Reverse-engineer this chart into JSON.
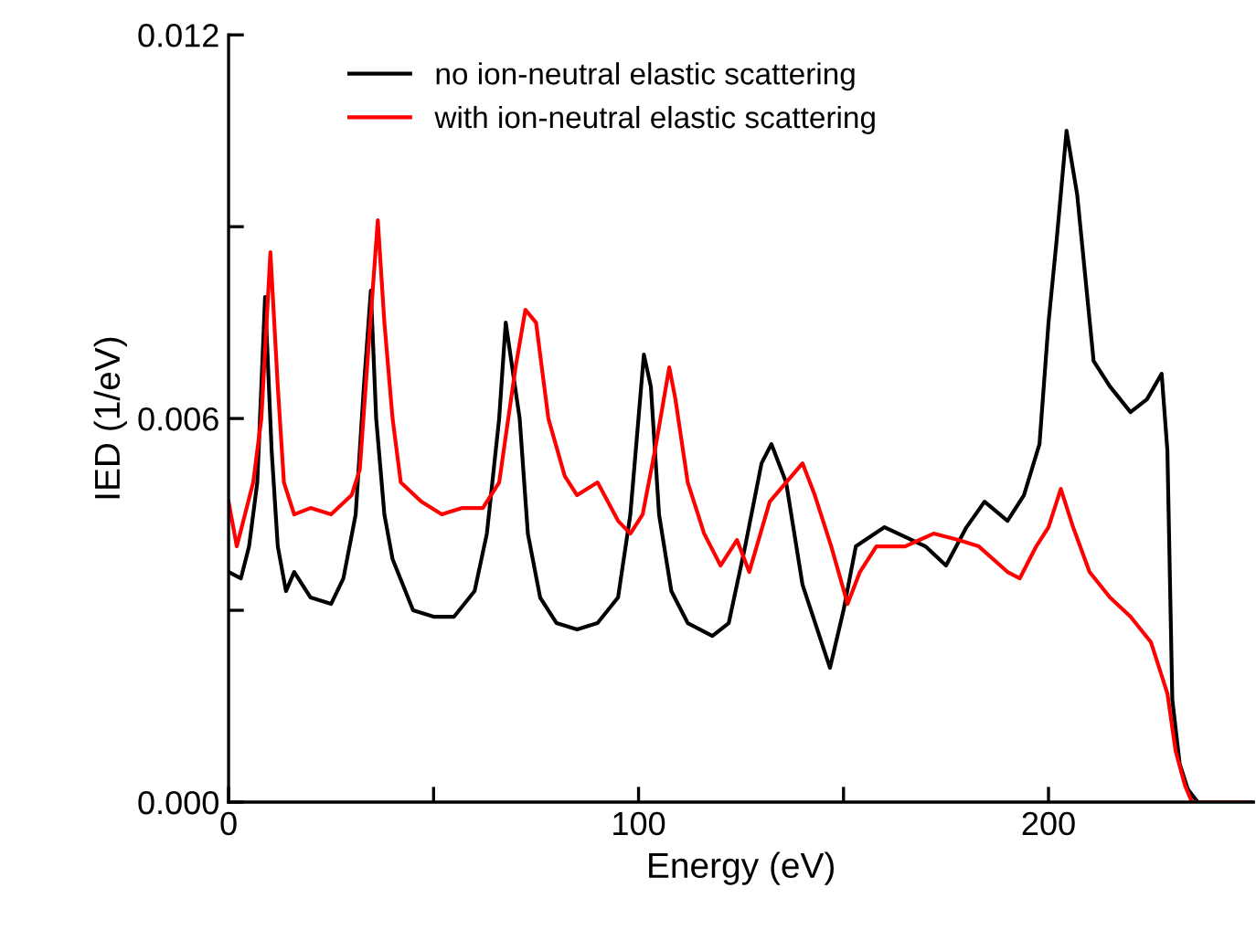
{
  "chart_data": {
    "type": "line",
    "xlabel": "Energy (eV)",
    "ylabel": "IED (1/eV)",
    "xlim": [
      0,
      250
    ],
    "xticks": [
      0,
      {
        "value": 50,
        "label": null
      },
      100,
      {
        "value": 150,
        "label": null
      },
      200
    ],
    "ylim": [
      0,
      0.012
    ],
    "yticks": [
      {
        "value": 0,
        "label": "0.000"
      },
      {
        "value": 0.003,
        "label": null
      },
      {
        "value": 0.006,
        "label": "0.006"
      },
      {
        "value": 0.009,
        "label": null
      },
      {
        "value": 0.012,
        "label": "0.012"
      }
    ],
    "grid": false,
    "legend": "top",
    "marker": "none",
    "line_style": "solid",
    "series": [
      {
        "name": "no ion-neutral elastic scattering",
        "color": "#000000",
        "x": [
          0,
          3,
          5,
          7,
          8.9,
          10.5,
          12,
          14,
          16,
          20,
          25,
          28,
          31,
          33,
          34.7,
          36,
          38,
          40,
          45,
          50,
          55,
          60,
          63,
          66,
          67.6,
          71,
          73,
          76,
          80,
          85,
          90,
          95,
          98,
          101.3,
          103,
          105,
          108,
          112,
          118,
          122,
          126,
          130,
          132.4,
          136,
          140,
          146.7,
          150,
          153,
          160,
          170,
          175,
          180,
          184.4,
          190,
          194,
          197.8,
          200,
          202,
          204.4,
          207,
          211,
          215,
          220,
          224,
          227.6,
          229,
          230.2,
          232,
          234,
          236.4,
          250
        ],
        "values": [
          0.0036,
          0.0035,
          0.004,
          0.005,
          0.0079,
          0.0055,
          0.004,
          0.0033,
          0.0036,
          0.0032,
          0.0031,
          0.0035,
          0.0045,
          0.0065,
          0.008,
          0.006,
          0.0045,
          0.0038,
          0.003,
          0.0029,
          0.0029,
          0.0033,
          0.0042,
          0.006,
          0.0075,
          0.006,
          0.0042,
          0.0032,
          0.0028,
          0.0027,
          0.0028,
          0.0032,
          0.0045,
          0.007,
          0.0065,
          0.0045,
          0.0033,
          0.0028,
          0.0026,
          0.0028,
          0.004,
          0.0053,
          0.0056,
          0.005,
          0.0034,
          0.0021,
          0.003,
          0.004,
          0.0043,
          0.004,
          0.0037,
          0.0043,
          0.0047,
          0.0044,
          0.0048,
          0.0056,
          0.0075,
          0.0088,
          0.0105,
          0.0095,
          0.0069,
          0.0065,
          0.0061,
          0.0063,
          0.0067,
          0.0055,
          0.0016,
          0.0006,
          0.0002,
          0,
          0
        ]
      },
      {
        "name": "with ion-neutral elastic scattering",
        "color": "#ff0000",
        "x": [
          0,
          2,
          4,
          6,
          8,
          10.2,
          12,
          13.5,
          16,
          20,
          25,
          30,
          32,
          34,
          36.4,
          38,
          40,
          42,
          47,
          52,
          57,
          62,
          66,
          70,
          72.4,
          75,
          78,
          82,
          85,
          90,
          95,
          98,
          101,
          104,
          107.5,
          109,
          112,
          116,
          120,
          124,
          127,
          132,
          136,
          140,
          143,
          147,
          151,
          154,
          158,
          165,
          172,
          178,
          183,
          190,
          193,
          197,
          200,
          203,
          206,
          210,
          215,
          220,
          225,
          229,
          231,
          233.3,
          235,
          250
        ],
        "values": [
          0.0047,
          0.004,
          0.0045,
          0.005,
          0.006,
          0.0086,
          0.0065,
          0.005,
          0.0045,
          0.0046,
          0.0045,
          0.0048,
          0.0052,
          0.007,
          0.0091,
          0.0075,
          0.006,
          0.005,
          0.0047,
          0.0045,
          0.0046,
          0.0046,
          0.005,
          0.0068,
          0.0077,
          0.0075,
          0.006,
          0.0051,
          0.0048,
          0.005,
          0.0044,
          0.0042,
          0.0045,
          0.0055,
          0.0068,
          0.0063,
          0.005,
          0.0042,
          0.0037,
          0.0041,
          0.0036,
          0.0047,
          0.005,
          0.0053,
          0.0048,
          0.004,
          0.0031,
          0.0036,
          0.004,
          0.004,
          0.0042,
          0.0041,
          0.004,
          0.0036,
          0.0035,
          0.004,
          0.0043,
          0.0049,
          0.0043,
          0.0036,
          0.0032,
          0.0029,
          0.0025,
          0.0017,
          0.0008,
          0.00026,
          0,
          0
        ]
      }
    ]
  }
}
